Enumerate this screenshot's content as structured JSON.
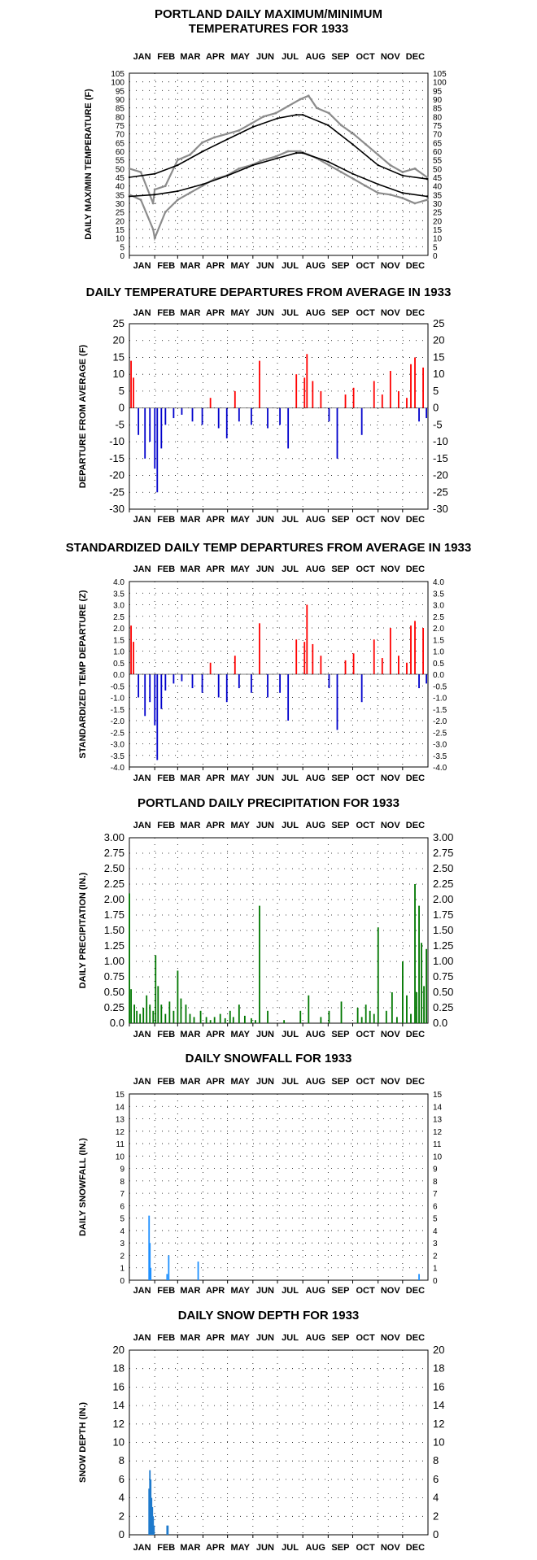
{
  "months": [
    "JAN",
    "FEB",
    "MAR",
    "APR",
    "MAY",
    "JUN",
    "JUL",
    "AUG",
    "SEP",
    "OCT",
    "NOV",
    "DEC"
  ],
  "colors": {
    "actual_temp": "#8c8c8c",
    "normal_temp": "#000000",
    "above_average": "#ff0000",
    "below_average": "#0000cc",
    "precipitation": "#007700",
    "snowfall": "#1e90ff",
    "snow_depth": "#1e7acc"
  },
  "chart_data": [
    {
      "id": "temps",
      "type": "line",
      "title": [
        "PORTLAND DAILY MAXIMUM/MINIMUM",
        "TEMPERATURES FOR 1933"
      ],
      "ylabel": "DAILY MAX/MIN TEMPERATURE (F)",
      "ylim": [
        0,
        105
      ],
      "yticks": [
        0,
        5,
        10,
        15,
        20,
        25,
        30,
        35,
        40,
        45,
        50,
        55,
        60,
        65,
        70,
        75,
        80,
        85,
        90,
        95,
        100,
        105
      ],
      "grid": true,
      "series": [
        {
          "role": "actual_max",
          "x": [
            1,
            15,
            30,
            32,
            45,
            60,
            75,
            90,
            105,
            120,
            135,
            150,
            165,
            180,
            195,
            210,
            220,
            230,
            245,
            260,
            275,
            290,
            305,
            320,
            335,
            350,
            365
          ],
          "values": [
            50,
            48,
            30,
            38,
            40,
            55,
            58,
            65,
            68,
            70,
            72,
            76,
            80,
            82,
            86,
            90,
            92,
            85,
            82,
            75,
            70,
            64,
            58,
            52,
            48,
            50,
            45
          ]
        },
        {
          "role": "actual_min",
          "x": [
            1,
            15,
            30,
            32,
            45,
            60,
            75,
            90,
            105,
            120,
            135,
            150,
            165,
            180,
            195,
            210,
            220,
            230,
            245,
            260,
            275,
            290,
            305,
            320,
            335,
            350,
            365
          ],
          "values": [
            35,
            32,
            15,
            10,
            25,
            32,
            36,
            40,
            44,
            46,
            50,
            52,
            55,
            57,
            60,
            60,
            58,
            56,
            52,
            48,
            44,
            40,
            36,
            35,
            33,
            30,
            32
          ]
        },
        {
          "role": "normal_max",
          "x": [
            1,
            32,
            60,
            91,
            121,
            152,
            182,
            205,
            213,
            244,
            274,
            305,
            335,
            365
          ],
          "values": [
            45,
            47,
            52,
            60,
            67,
            74,
            79,
            81,
            81,
            75,
            64,
            52,
            46,
            44
          ]
        },
        {
          "role": "normal_min",
          "x": [
            1,
            32,
            60,
            91,
            121,
            152,
            182,
            205,
            213,
            244,
            274,
            305,
            335,
            365
          ],
          "values": [
            34,
            35,
            37,
            41,
            46,
            52,
            56,
            59,
            59,
            54,
            47,
            41,
            36,
            34
          ]
        }
      ]
    },
    {
      "id": "departures",
      "type": "bar",
      "title": [
        "DAILY TEMPERATURE DEPARTURES FROM AVERAGE IN 1933"
      ],
      "ylabel": "DEPARTURE FROM AVERAGE (F)",
      "ylim": [
        -30,
        25
      ],
      "yticks": [
        -30,
        -25,
        -20,
        -15,
        -10,
        -5,
        0,
        5,
        10,
        15,
        20,
        25
      ],
      "grid": true,
      "x": [
        3,
        6,
        12,
        20,
        26,
        32,
        35,
        40,
        45,
        55,
        65,
        78,
        90,
        100,
        110,
        120,
        130,
        135,
        150,
        160,
        170,
        185,
        195,
        205,
        215,
        218,
        225,
        235,
        245,
        255,
        265,
        275,
        285,
        300,
        310,
        320,
        330,
        340,
        345,
        350,
        355,
        360,
        364
      ],
      "values": [
        14,
        9,
        -8,
        -15,
        -10,
        -18,
        -25,
        -12,
        -5,
        -3,
        -2,
        -4,
        -5,
        3,
        -6,
        -9,
        5,
        -4,
        -5,
        14,
        -6,
        -5,
        -12,
        10,
        9,
        16,
        8,
        5,
        -4,
        -15,
        4,
        6,
        -8,
        8,
        4,
        11,
        5,
        3,
        13,
        15,
        -4,
        12,
        -3
      ]
    },
    {
      "id": "standardized",
      "type": "bar",
      "title": [
        "STANDARDIZED DAILY TEMP DEPARTURES FROM AVERAGE IN 1933"
      ],
      "ylabel": "STANDARDIZED TEMP DEPARTURE (Z)",
      "ylim": [
        -4.0,
        4.0
      ],
      "yticks": [
        -4.0,
        -3.5,
        -3.0,
        -2.5,
        -2.0,
        -1.5,
        -1.0,
        -0.5,
        0.0,
        0.5,
        1.0,
        1.5,
        2.0,
        2.5,
        3.0,
        3.5,
        4.0
      ],
      "ytick_labels": [
        "-4.0",
        "-3.5",
        "-3.0",
        "-2.5",
        "-2.0",
        "-1.5",
        "-1.0",
        "-0.5",
        "0.0",
        "0.5",
        "1.0",
        "1.5",
        "2.0",
        "2.5",
        "3.0",
        "3.5",
        "4.0"
      ],
      "grid": true,
      "x": [
        3,
        6,
        12,
        20,
        26,
        32,
        35,
        40,
        45,
        55,
        65,
        78,
        90,
        100,
        110,
        120,
        130,
        135,
        150,
        160,
        170,
        185,
        195,
        205,
        215,
        218,
        225,
        235,
        245,
        255,
        265,
        275,
        285,
        300,
        310,
        320,
        330,
        340,
        345,
        350,
        355,
        360,
        364
      ],
      "values": [
        2.1,
        1.4,
        -1.0,
        -1.8,
        -1.2,
        -2.2,
        -3.7,
        -1.5,
        -0.7,
        -0.4,
        -0.3,
        -0.6,
        -0.8,
        0.5,
        -1.0,
        -1.2,
        0.8,
        -0.6,
        -0.8,
        2.2,
        -1.0,
        -0.8,
        -2.0,
        1.5,
        1.4,
        3.0,
        1.3,
        0.8,
        -0.6,
        -2.4,
        0.6,
        0.9,
        -1.2,
        1.5,
        0.7,
        2.0,
        0.8,
        0.5,
        2.1,
        2.3,
        -0.6,
        2.0,
        -0.4
      ]
    },
    {
      "id": "precip",
      "type": "bar",
      "title": [
        "PORTLAND DAILY PRECIPITATION FOR 1933"
      ],
      "ylabel": "DAILY PRECIPITATION (IN.)",
      "ylim": [
        0,
        3.0
      ],
      "yticks": [
        0,
        0.25,
        0.5,
        0.75,
        1.0,
        1.25,
        1.5,
        1.75,
        2.0,
        2.25,
        2.5,
        2.75,
        3.0
      ],
      "ytick_labels": [
        "0.0",
        "0.25",
        "0.50",
        "0.75",
        "1.00",
        "1.25",
        "1.50",
        "1.75",
        "2.00",
        "2.25",
        "2.50",
        "2.75",
        "3.00"
      ],
      "grid": true,
      "x": [
        1,
        3,
        7,
        10,
        14,
        18,
        22,
        26,
        30,
        33,
        36,
        40,
        45,
        50,
        55,
        60,
        64,
        70,
        75,
        80,
        88,
        95,
        100,
        105,
        112,
        118,
        124,
        128,
        135,
        142,
        150,
        155,
        160,
        170,
        190,
        210,
        220,
        235,
        245,
        260,
        280,
        285,
        290,
        295,
        300,
        305,
        315,
        322,
        328,
        335,
        340,
        345,
        350,
        352,
        355,
        358,
        361,
        364
      ],
      "values": [
        2.1,
        0.55,
        0.3,
        0.2,
        0.15,
        0.25,
        0.45,
        0.3,
        0.2,
        1.1,
        0.6,
        0.3,
        0.15,
        0.35,
        0.2,
        0.85,
        0.4,
        0.3,
        0.15,
        0.1,
        0.2,
        0.1,
        0.05,
        0.1,
        0.15,
        0.08,
        0.2,
        0.1,
        0.3,
        0.12,
        0.08,
        0.05,
        1.9,
        0.2,
        0.05,
        0.2,
        0.45,
        0.1,
        0.2,
        0.35,
        0.25,
        0.1,
        0.3,
        0.2,
        0.15,
        1.55,
        0.2,
        0.5,
        0.1,
        1.0,
        0.45,
        0.15,
        2.25,
        0.5,
        1.9,
        1.3,
        0.6,
        1.2
      ]
    },
    {
      "id": "snowfall",
      "type": "bar",
      "title": [
        "DAILY SNOWFALL FOR 1933"
      ],
      "ylabel": "DAILY SNOWFALL (IN.)",
      "ylim": [
        0,
        15
      ],
      "yticks": [
        0,
        1,
        2,
        3,
        4,
        5,
        6,
        7,
        8,
        9,
        10,
        11,
        12,
        13,
        14,
        15
      ],
      "grid": true,
      "x": [
        25,
        26,
        27,
        47,
        49,
        85,
        355
      ],
      "values": [
        5.2,
        3.0,
        1.0,
        0.5,
        2.0,
        1.5,
        0.5
      ]
    },
    {
      "id": "snowdepth",
      "type": "bar",
      "title": [
        "DAILY SNOW DEPTH FOR 1933"
      ],
      "ylabel": "SNOW DEPTH (IN.)",
      "ylim": [
        0,
        20
      ],
      "yticks": [
        0,
        2,
        4,
        6,
        8,
        10,
        12,
        14,
        16,
        18,
        20
      ],
      "grid": true,
      "x": [
        25,
        26,
        27,
        28,
        29,
        30,
        31,
        47,
        48
      ],
      "values": [
        5,
        7,
        6,
        4,
        3,
        2,
        1,
        1,
        1
      ]
    }
  ]
}
